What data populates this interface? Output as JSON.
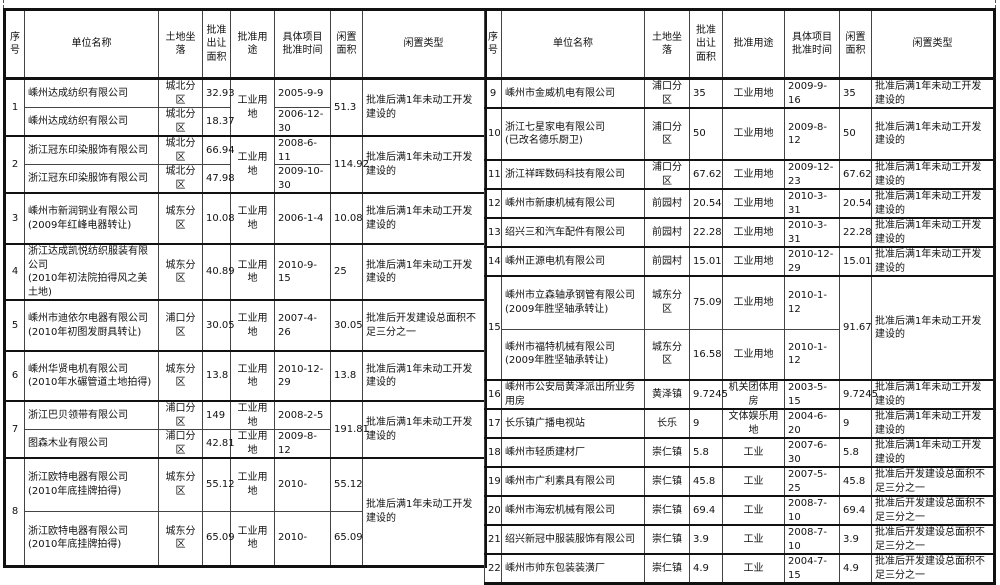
{
  "headers": {
    "seq": "序\n号",
    "name": "单位名称",
    "location": "土地坐落",
    "area": "批准\n出让\n面积",
    "use": "批准用途",
    "date": "具体项目\n批准时间",
    "idle_area": "闲置\n面积",
    "idle_type": "闲置类型"
  },
  "left": {
    "groups": [
      {
        "seq": "1",
        "use": "工业用地",
        "idle_area": "51.3",
        "idle_type": "批准后满1年未动工开发建设的",
        "items": [
          {
            "name": "嵊州达成纺织有限公司",
            "location": "城北分区",
            "area": "32.93",
            "date": "2005-9-9"
          },
          {
            "name": "嵊州达成纺织有限公司",
            "location": "城北分区",
            "area": "18.37",
            "date": "2006-12-30"
          }
        ]
      },
      {
        "seq": "2",
        "use": "工业用地",
        "idle_area": "114.92",
        "idle_type": "批准后满1年未动工开发建设的",
        "items": [
          {
            "name": "浙江冠东印染服饰有限公司",
            "location": "城北分区",
            "area": "66.94",
            "date": "2008-6-11"
          },
          {
            "name": "浙江冠东印染服饰有限公司",
            "location": "城北分区",
            "area": "47.98",
            "date": "2009-10-30"
          }
        ]
      },
      {
        "seq": "3",
        "items": [
          {
            "name": "嵊州市新润铜业有限公司\n(2009年红峰电器转让)",
            "location": "城东分区",
            "area": "10.08",
            "use": "工业用地",
            "date": "2006-1-4",
            "idle_area": "10.08",
            "idle_type": "批准后满1年未动工开发建设的"
          }
        ]
      },
      {
        "seq": "4",
        "items": [
          {
            "name": "浙江达成凯悦纺织服装有限公司\n(2010年初法院拍得风之美土地)",
            "location": "城东分区",
            "area": "40.89",
            "use": "工业用地",
            "date": "2010-9-15",
            "idle_area": "25",
            "idle_type": "批准后满1年未动工开发建设的"
          }
        ]
      },
      {
        "seq": "5",
        "items": [
          {
            "name": "嵊州市迪依尔电器有限公司\n(2010年初图发厨具转让)",
            "location": "浦口分区",
            "area": "30.05",
            "use": "工业用地",
            "date": "2007-4-26",
            "idle_area": "30.05",
            "idle_type": "批准后开发建设总面积不足三分之一"
          }
        ]
      },
      {
        "seq": "6",
        "items": [
          {
            "name": "嵊州华贤电机有限公司\n(2010年水碾管道土地拍得)",
            "location": "城东分区",
            "area": "13.8",
            "use": "工业用地",
            "date": "2010-12-29",
            "idle_area": "13.8",
            "idle_type": "批准后满1年未动工开发建设的"
          }
        ]
      },
      {
        "seq": "7",
        "idle_area": "191.81",
        "idle_type": "批准后满1年未动工开发建设的",
        "items": [
          {
            "name": "浙江巴贝领带有限公司",
            "location": "浦口分区",
            "area": "149",
            "use": "工业用地",
            "date": "2008-2-5"
          },
          {
            "name": "图森木业有限公司",
            "location": "浦口分区",
            "area": "42.81",
            "use": "工业用地",
            "date": "2009-8-12"
          }
        ]
      },
      {
        "seq": "8",
        "idle_type": "批准后满1年未动工开发建设的",
        "items": [
          {
            "name": "浙江欧特电器有限公司\n(2010年底挂牌拍得)",
            "location": "城东分区",
            "area": "55.12",
            "use": "工业用地",
            "date": "2010-",
            "idle_area": "55.12"
          },
          {
            "name": "浙江欧特电器有限公司\n(2010年底挂牌拍得)",
            "location": "城东分区",
            "area": "65.09",
            "use": "工业用地",
            "date": "2010-",
            "idle_area": "65.09"
          }
        ]
      }
    ]
  },
  "right": {
    "groups": [
      {
        "seq": "9",
        "items": [
          {
            "name": "嵊州市金威机电有限公司",
            "location": "浦口分区",
            "area": "35",
            "use": "工业用地",
            "date": "2009-9-16",
            "idle_area": "35",
            "idle_type": "批准后满1年未动工开发建设的"
          }
        ]
      },
      {
        "seq": "10",
        "items": [
          {
            "name": "浙江七星家电有限公司\n(已改名德乐厨卫)",
            "location": "浦口分区",
            "area": "50",
            "use": "工业用地",
            "date": "2009-8-12",
            "idle_area": "50",
            "idle_type": "批准后满1年未动工开发建设的"
          }
        ]
      },
      {
        "seq": "11",
        "items": [
          {
            "name": "浙江祥晖数码科技有限公司",
            "location": "浦口分区",
            "area": "67.62",
            "use": "工业用地",
            "date": "2009-12-23",
            "idle_area": "67.62",
            "idle_type": "批准后满1年未动工开发建设的"
          }
        ]
      },
      {
        "seq": "12",
        "items": [
          {
            "name": "嵊州市新康机械有限公司",
            "location": "前园村",
            "area": "20.54",
            "use": "工业用地",
            "date": "2010-3-31",
            "idle_area": "20.54",
            "idle_type": "批准后满1年未动工开发建设的"
          }
        ]
      },
      {
        "seq": "13",
        "items": [
          {
            "name": "绍兴三和汽车配件有限公司",
            "location": "前园村",
            "area": "22.28",
            "use": "工业用地",
            "date": "2010-3-31",
            "idle_area": "22.28",
            "idle_type": "批准后满1年未动工开发建设的"
          }
        ]
      },
      {
        "seq": "14",
        "items": [
          {
            "name": "嵊州正源电机有限公司",
            "location": "前园村",
            "area": "15.01",
            "use": "工业用地",
            "date": "2010-12-29",
            "idle_area": "15.01",
            "idle_type": "批准后满1年未动工开发建设的"
          }
        ]
      },
      {
        "seq": "15",
        "idle_area": "91.67",
        "idle_type": "批准后满1年未动工开发建设的",
        "items": [
          {
            "name": "嵊州市立森轴承钢管有限公司\n(2009年胜坚轴承转让)",
            "location": "城东分区",
            "area": "75.09",
            "use": "工业用地",
            "date": "2010-1-12"
          },
          {
            "name": "嵊州市福特机械有限公司\n(2009年胜坚轴承转让)",
            "location": "城东分区",
            "area": "16.58",
            "use": "工业用地",
            "date": "2010-1-12"
          }
        ]
      },
      {
        "seq": "16",
        "items": [
          {
            "name": "嵊州市公安局黄泽派出所业务用房",
            "location": "黄泽镇",
            "area": "9.7245",
            "use": "机关团体用房",
            "date": "2003-5-15",
            "idle_area": "9.7245",
            "idle_type": "批准后满1年未动工开发建设的"
          }
        ]
      },
      {
        "seq": "17",
        "items": [
          {
            "name": "长乐镇广播电视站",
            "location": "长乐",
            "area": "9",
            "use": "文体娱乐用地",
            "date": "2004-6-20",
            "idle_area": "9",
            "idle_type": "批准后满1年未动工开发建设的"
          }
        ]
      },
      {
        "seq": "18",
        "items": [
          {
            "name": "嵊州市轻质建材厂",
            "location": "崇仁镇",
            "area": "5.8",
            "use": "工业",
            "date": "2007-6-30",
            "idle_area": "5.8",
            "idle_type": "批准后满1年未动工开发建设的"
          }
        ]
      },
      {
        "seq": "19",
        "items": [
          {
            "name": "嵊州市广利素具有限公司",
            "location": "崇仁镇",
            "area": "45.8",
            "use": "工业",
            "date": "2007-5-25",
            "idle_area": "45.8",
            "idle_type": "批准后开发建设总面积不足三分之一"
          }
        ]
      },
      {
        "seq": "20",
        "items": [
          {
            "name": "嵊州市海宏机械有限公司",
            "location": "崇仁镇",
            "area": "69.4",
            "use": "工业",
            "date": "2008-7-10",
            "idle_area": "69.4",
            "idle_type": "批准后开发建设总面积不足三分之一"
          }
        ]
      },
      {
        "seq": "21",
        "items": [
          {
            "name": "绍兴新冠中服装服饰有限公司",
            "location": "崇仁镇",
            "area": "3.9",
            "use": "工业",
            "date": "2008-7-10",
            "idle_area": "3.9",
            "idle_type": "批准后开发建设总面积不足三分之一"
          }
        ]
      },
      {
        "seq": "22",
        "items": [
          {
            "name": "嵊州市帅东包装装潢厂",
            "location": "崇仁镇",
            "area": "4.9",
            "use": "工业",
            "date": "2004-7-15",
            "idle_area": "4.9",
            "idle_type": "批准后开发建设总面积不足三分之一"
          }
        ]
      }
    ]
  }
}
